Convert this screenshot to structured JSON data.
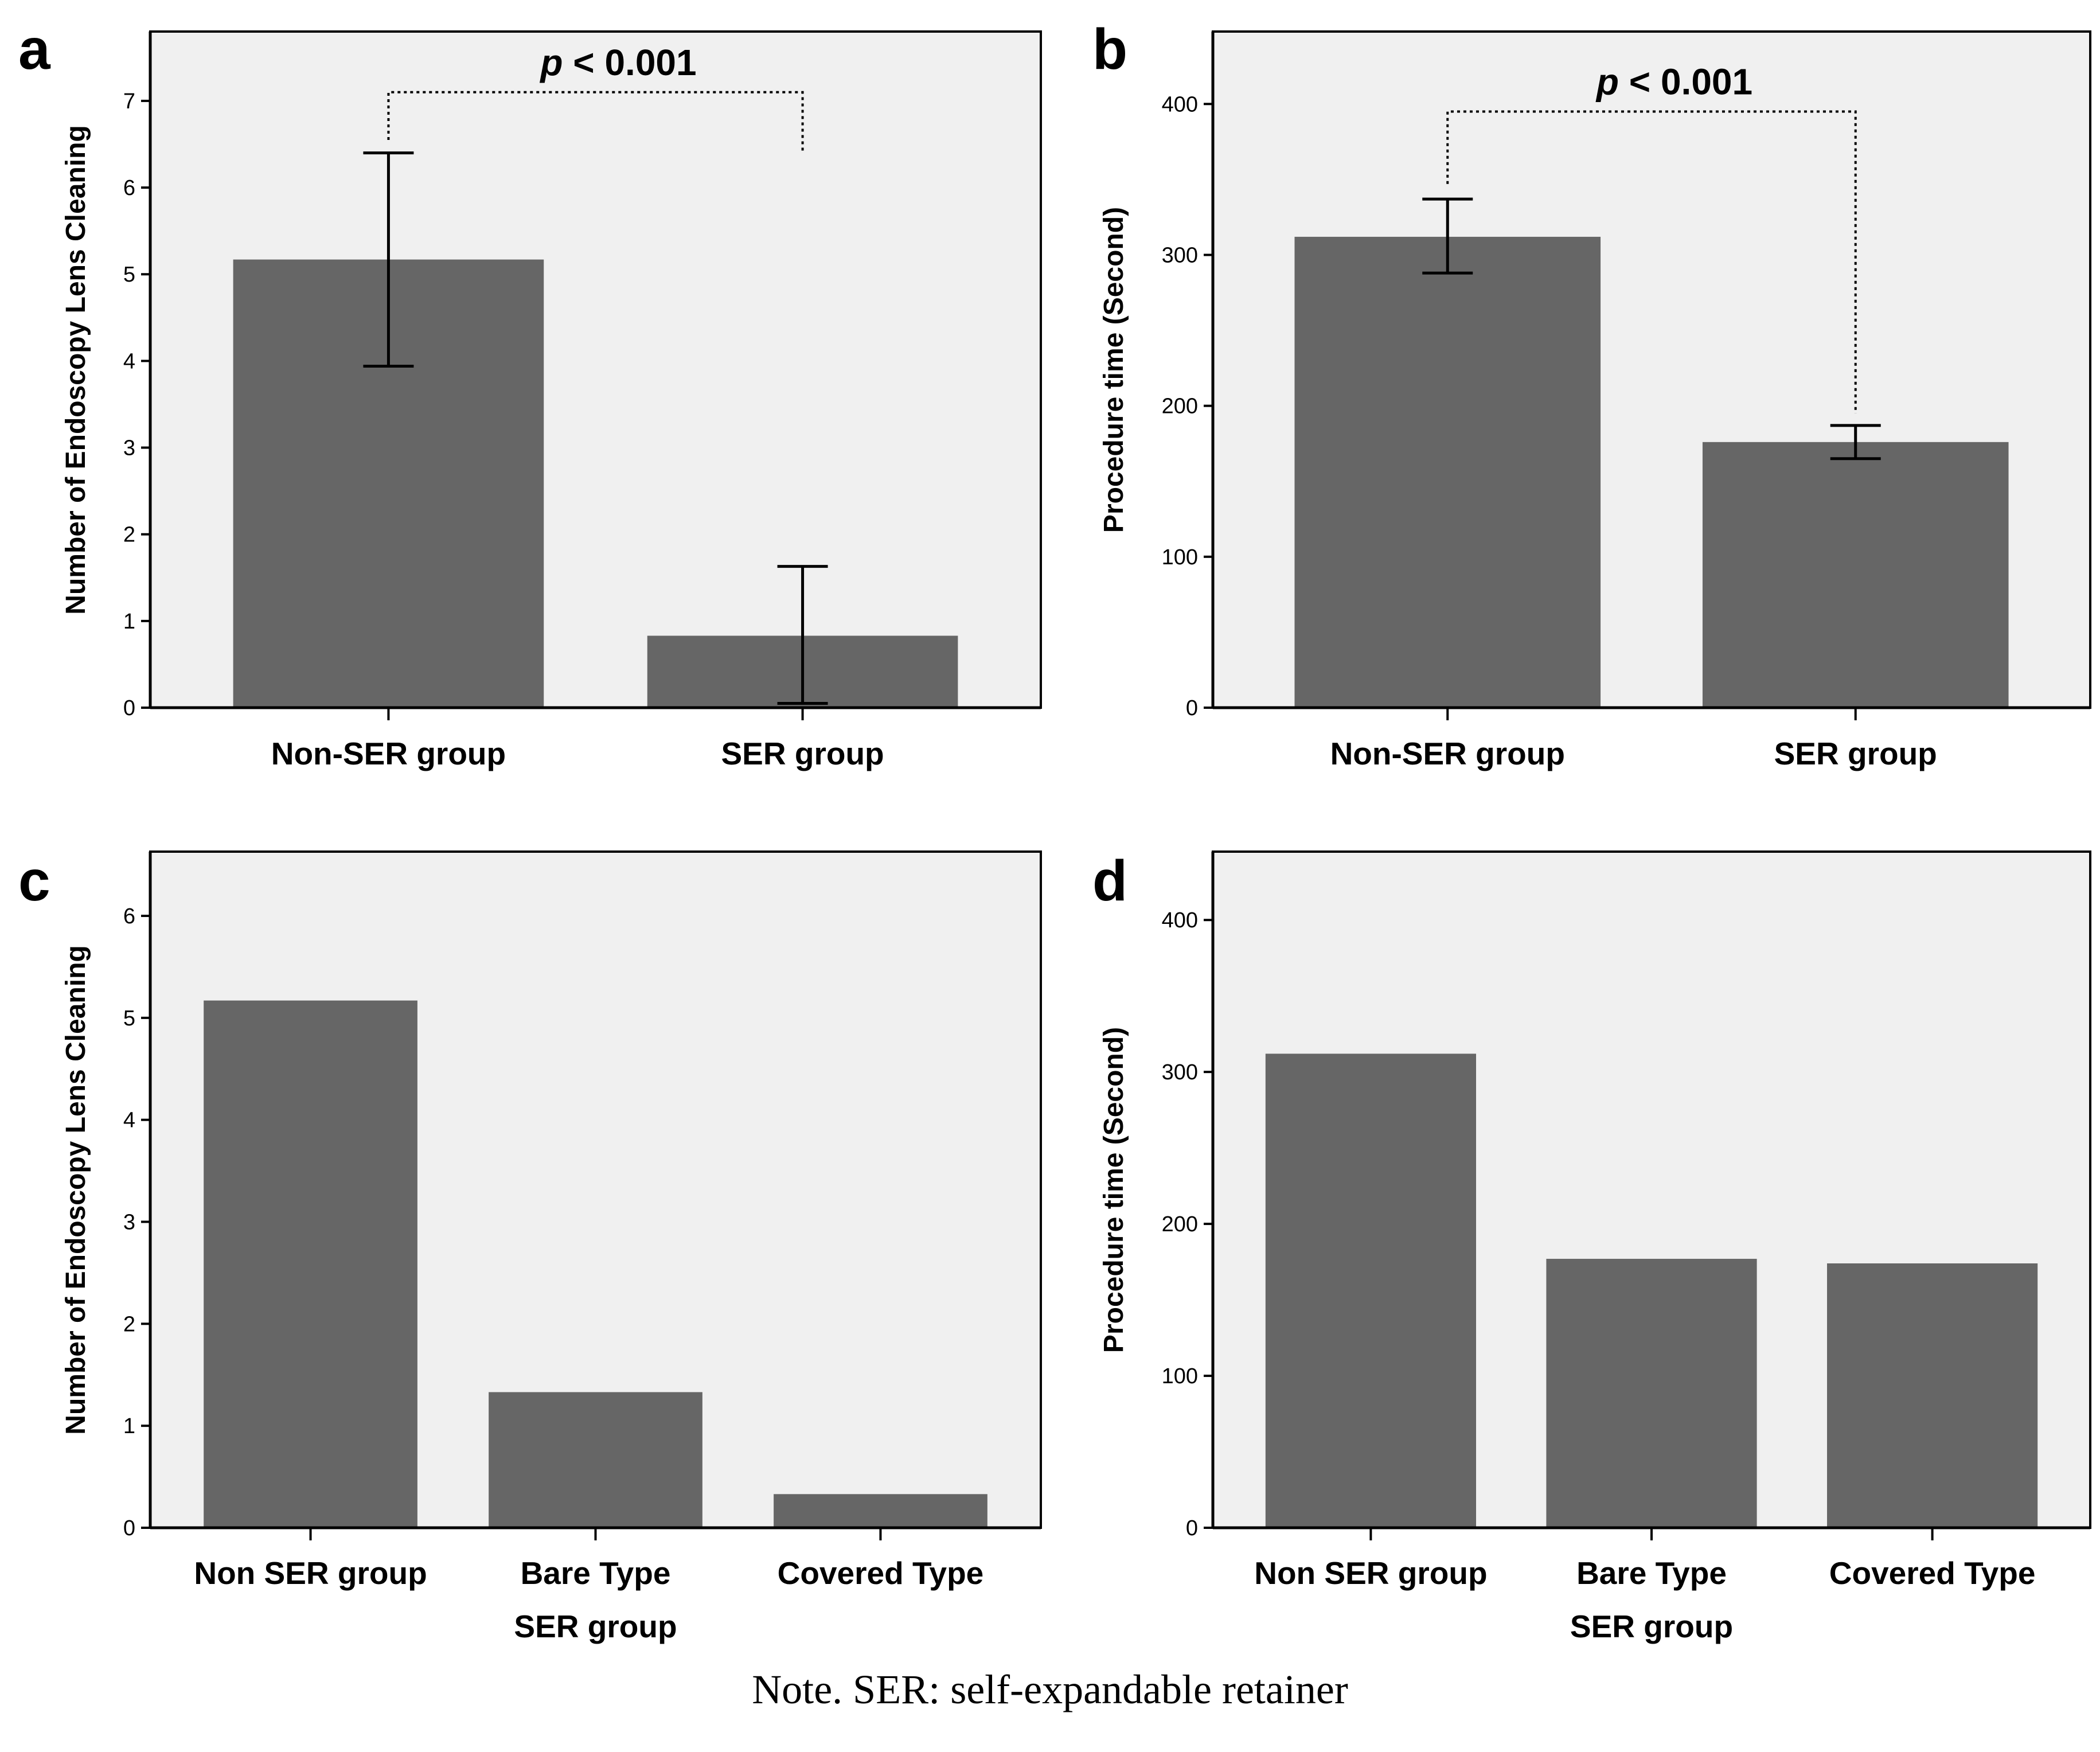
{
  "figure_note": "Note. SER: self-expandable retainer",
  "chart_data": [
    {
      "panel": "a",
      "type": "bar",
      "categories": [
        "Non-SER group",
        "SER group"
      ],
      "values": [
        5.17,
        0.83
      ],
      "error_low": [
        3.94,
        0.05
      ],
      "error_high": [
        6.4,
        1.63
      ],
      "title": "",
      "xlabel": "",
      "ylabel": "Number of Endoscopy Lens Cleaning",
      "ylim": [
        0,
        7.8
      ],
      "yticks": [
        0,
        1,
        2,
        3,
        4,
        5,
        6,
        7
      ],
      "annotation": {
        "text_italic": "p",
        "text_rest": " < 0.001",
        "bracket_top": 7.1,
        "left_end": 6.55,
        "right_end": 6.4
      }
    },
    {
      "panel": "b",
      "type": "bar",
      "categories": [
        "Non-SER group",
        "SER group"
      ],
      "values": [
        312,
        176
      ],
      "error_low": [
        288,
        165
      ],
      "error_high": [
        337,
        187
      ],
      "title": "",
      "xlabel": "",
      "ylabel": "Procedure time (Second)",
      "ylim": [
        0,
        448
      ],
      "yticks": [
        0,
        100,
        200,
        300,
        400
      ],
      "annotation": {
        "text_italic": "p",
        "text_rest": " < 0.001",
        "bracket_top": 395,
        "left_end": 347,
        "right_end": 195
      }
    },
    {
      "panel": "c",
      "type": "bar",
      "categories": [
        "Non SER group",
        "Bare Type",
        "Covered Type"
      ],
      "values": [
        5.17,
        1.33,
        0.33
      ],
      "title": "",
      "xlabel": "SER group",
      "ylabel": "Number of Endoscopy Lens Cleaning",
      "ylim": [
        0,
        6.63
      ],
      "yticks": [
        0,
        1,
        2,
        3,
        4,
        5,
        6
      ]
    },
    {
      "panel": "d",
      "type": "bar",
      "categories": [
        "Non SER group",
        "Bare Type",
        "Covered Type"
      ],
      "values": [
        312,
        177,
        174
      ],
      "title": "",
      "xlabel": "SER group",
      "ylabel": "Procedure time (Second)",
      "ylim": [
        0,
        445
      ],
      "yticks": [
        0,
        100,
        200,
        300,
        400
      ]
    }
  ]
}
